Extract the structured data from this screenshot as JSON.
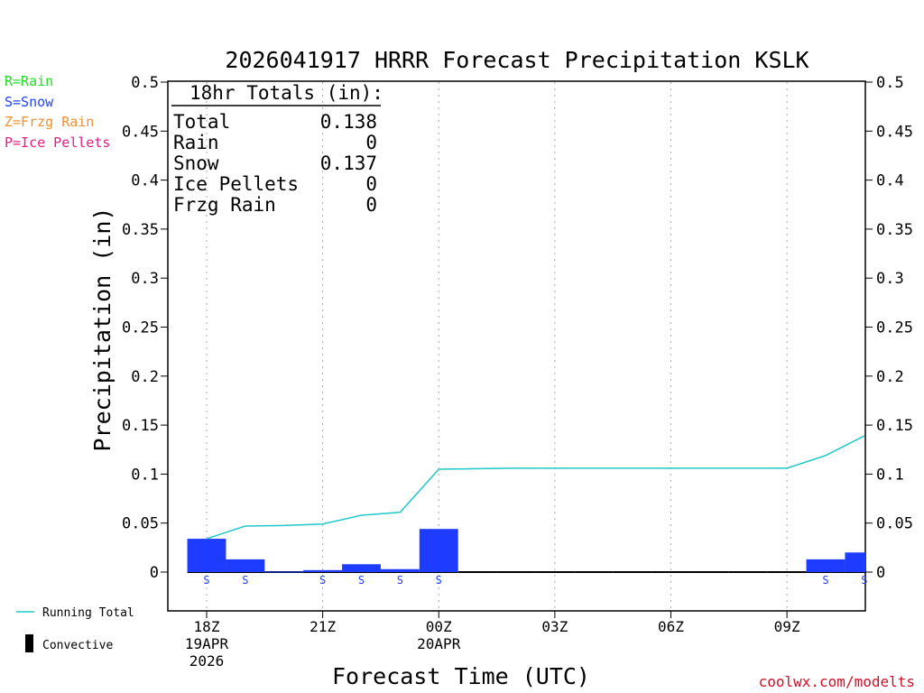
{
  "chart_data": {
    "type": "bar",
    "title": "2026041917 HRRR Forecast Precipitation KSLK",
    "xlabel": "Forecast Time (UTC)",
    "ylabel": "Precipitation (in)",
    "ylim": [
      0,
      0.5
    ],
    "yticks": [
      "0",
      "0.05",
      "0.1",
      "0.15",
      "0.2",
      "0.25",
      "0.3",
      "0.35",
      "0.4",
      "0.45",
      "0.5"
    ],
    "x_ticks": [
      {
        "hour": 0,
        "label": "18Z",
        "sub1": "19APR",
        "sub2": "2026"
      },
      {
        "hour": 3,
        "label": "21Z",
        "sub1": "",
        "sub2": ""
      },
      {
        "hour": 6,
        "label": "00Z",
        "sub1": "20APR",
        "sub2": ""
      },
      {
        "hour": 9,
        "label": "03Z",
        "sub1": "",
        "sub2": ""
      },
      {
        "hour": 12,
        "label": "06Z",
        "sub1": "",
        "sub2": ""
      },
      {
        "hour": 15,
        "label": "09Z",
        "sub1": "",
        "sub2": ""
      }
    ],
    "hourly_precip": [
      0.034,
      0.013,
      0.0005,
      0.002,
      0.008,
      0.003,
      0.044,
      0,
      0,
      0,
      0,
      0,
      0,
      0,
      0,
      0,
      0.013,
      0.02
    ],
    "running_total": [
      0.034,
      0.047,
      0.0475,
      0.049,
      0.058,
      0.061,
      0.105,
      0.1055,
      0.106,
      0.106,
      0.106,
      0.106,
      0.106,
      0.106,
      0.106,
      0.106,
      0.119,
      0.139
    ],
    "precip_type_labels": [
      "S",
      "S",
      "",
      "S",
      "S",
      "S",
      "S",
      "",
      "",
      "",
      "",
      "",
      "",
      "",
      "",
      "",
      "S",
      "S"
    ],
    "bar_color": "#1e3cff",
    "line_color": "#1ec8c8",
    "grid": "vertical dotted at tick hours"
  },
  "totals_box": {
    "header": "18hr Totals (in):",
    "rows": [
      {
        "label": "Total",
        "value": "0.138"
      },
      {
        "label": "Rain",
        "value": "0"
      },
      {
        "label": "Snow",
        "value": "0.137"
      },
      {
        "label": "Ice Pellets",
        "value": "0"
      },
      {
        "label": "Frzg Rain",
        "value": "0"
      }
    ]
  },
  "type_legend": [
    {
      "text": "R=Rain",
      "color": "#22dd22"
    },
    {
      "text": "S=Snow",
      "color": "#2244ff"
    },
    {
      "text": "Z=Frzg Rain",
      "color": "#f09030"
    },
    {
      "text": "P=Ice Pellets",
      "color": "#e0208a"
    }
  ],
  "bottom_legend": {
    "running_total": "Running Total",
    "convective": "Convective"
  },
  "credit": "coolwx.com/modelts"
}
